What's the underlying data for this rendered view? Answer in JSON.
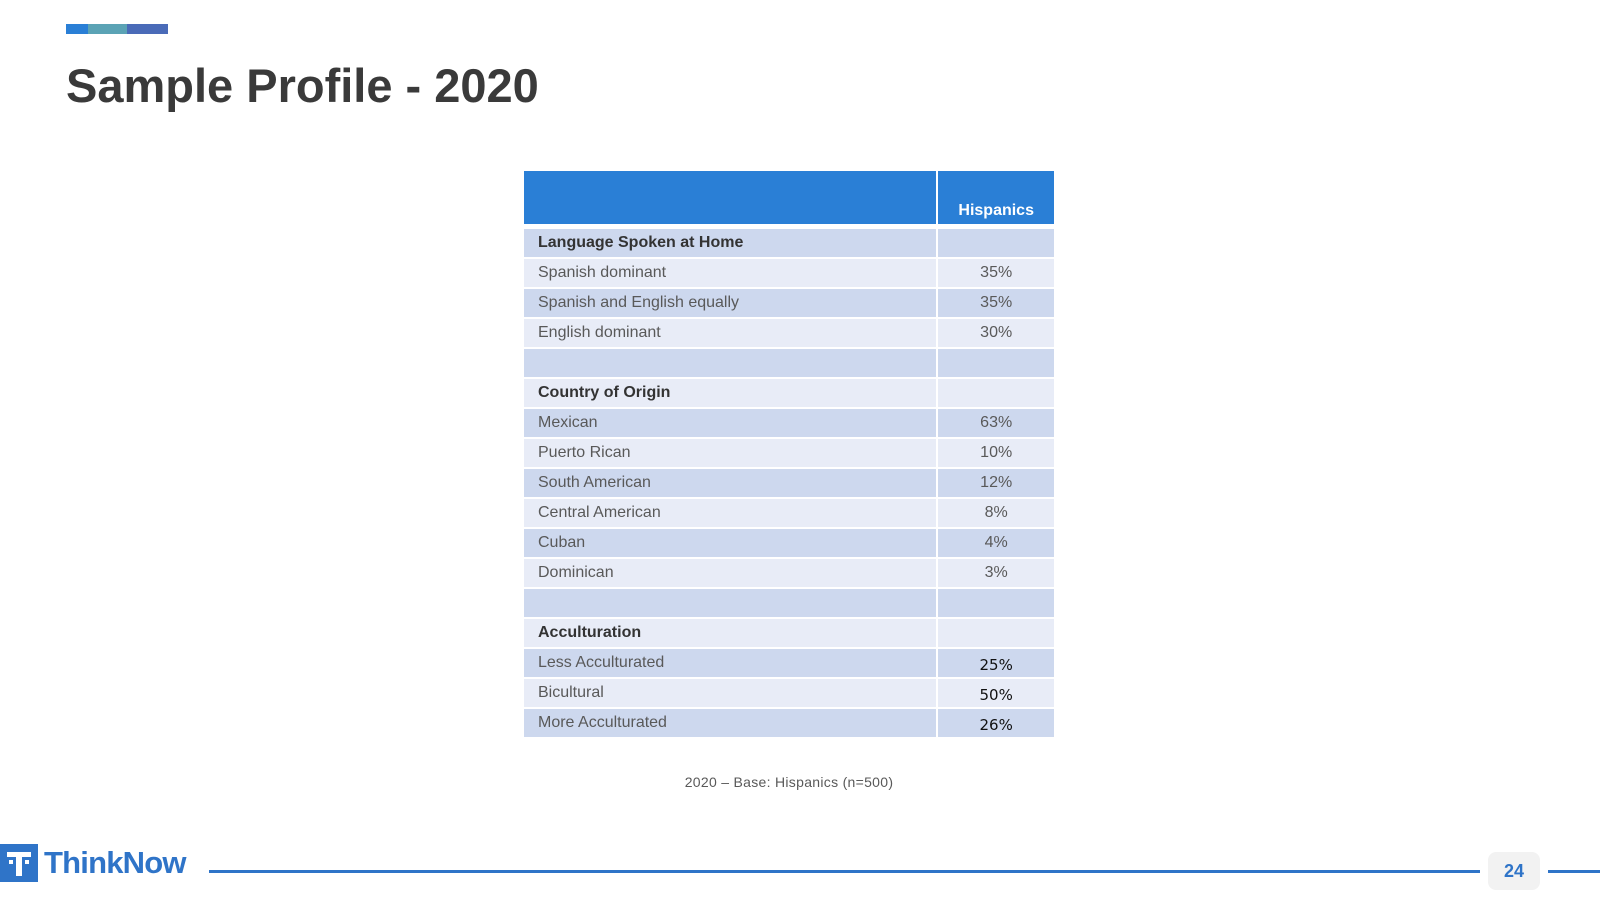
{
  "slide": {
    "title": "Sample Profile - 2020",
    "page_number": "24",
    "base_note": "2020 – Base: Hispanics (n=500)",
    "logo_text": "ThinkNow",
    "accent_colors": [
      "#2a7fd6",
      "#5ba3b5",
      "#4a6bb8"
    ],
    "brand_color": "#2f74c8"
  },
  "table": {
    "column_header": "Hispanics",
    "rows": [
      {
        "label": "Language Spoken at Home",
        "value": "",
        "type": "section"
      },
      {
        "label": "Spanish dominant",
        "value": "35%",
        "type": "item"
      },
      {
        "label": "Spanish and English equally",
        "value": "35%",
        "type": "item"
      },
      {
        "label": "English dominant",
        "value": "30%",
        "type": "item"
      },
      {
        "label": "",
        "value": "",
        "type": "blank"
      },
      {
        "label": "Country of Origin",
        "value": "",
        "type": "section"
      },
      {
        "label": "Mexican",
        "value": "63%",
        "type": "item"
      },
      {
        "label": "Puerto Rican",
        "value": "10%",
        "type": "item"
      },
      {
        "label": "South American",
        "value": "12%",
        "type": "item"
      },
      {
        "label": "Central American",
        "value": "8%",
        "type": "item"
      },
      {
        "label": "Cuban",
        "value": "4%",
        "type": "item"
      },
      {
        "label": "Dominican",
        "value": "3%",
        "type": "item"
      },
      {
        "label": "",
        "value": "",
        "type": "blank"
      },
      {
        "label": "Acculturation",
        "value": "",
        "type": "section"
      },
      {
        "label": "Less Acculturated",
        "value": "25%",
        "type": "item-dark"
      },
      {
        "label": "Bicultural",
        "value": "50%",
        "type": "item-dark"
      },
      {
        "label": "More Acculturated",
        "value": "26%",
        "type": "item-dark"
      }
    ]
  }
}
